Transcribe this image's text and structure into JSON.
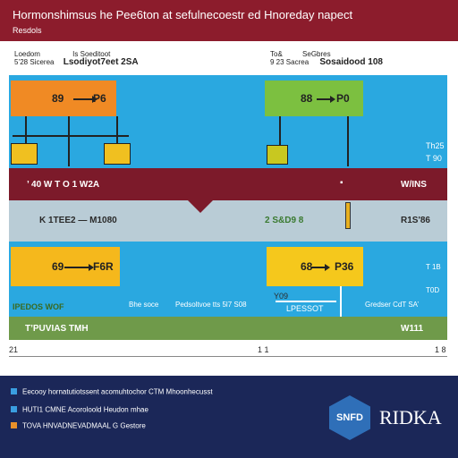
{
  "header": {
    "title": "Hormonshimsus he Pee6ton at sefulnecoestr ed Hnoreday napect",
    "subtitle": "Resdols"
  },
  "left_column": {
    "name": "Loedom",
    "col_a": "Is Soeditoot",
    "line2": "5’28 Sicerea",
    "line2b": "Lsodiyot7eet 2SA"
  },
  "right_column": {
    "name": "To&",
    "col_a": "SeGbres",
    "line2": "9 23 Sacrea",
    "line2b": "Sosaidood 108"
  },
  "row1": {
    "left_box_num": "89",
    "left_box_val": "P6",
    "right_box_num": "88",
    "right_box_val": "P0",
    "side_labels": [
      "Th25",
      "T 90"
    ]
  },
  "row2": {
    "left_label": "’ 40 W T O 1 W2A",
    "center_mark": "▪",
    "right_label": "W/INS"
  },
  "row3": {
    "left_label": "K 1TEE2 — M1080",
    "center_label": "2 S&D9 8",
    "right_label": "R1S'86"
  },
  "row4": {
    "left_box_num": "69",
    "left_box_val": "F6R",
    "right_box_num": "68",
    "right_box_val": "P36",
    "foot_left": "Bhe soce",
    "foot_mid": "Pedsoltvoe tts 5l7 S08",
    "small_label": "Y09",
    "foot_right": "Gredser CdT SA’",
    "right_side": [
      "T 1B",
      "T0D"
    ]
  },
  "row5": {
    "line1": "IPEDOS WOF",
    "line2": "T’PUVIAS TMH",
    "mid": "LPESSOT",
    "right": "W111"
  },
  "scale": {
    "left": "21",
    "mid": "1 1",
    "right": "1 8"
  },
  "footer": {
    "items": [
      {
        "text": "Eecooy hornatutiotssent acomuhtochor CTM Mhoonhecusst",
        "color": "#3a9ee0"
      },
      {
        "text": "HUTI1 CMNE Acoroloold Heudon mhae",
        "color": "#3a9ee0"
      },
      {
        "text": "TOVA HNVADNEVADMAAL G Gestore",
        "color": "#e8902a"
      }
    ],
    "logo_text": "SNFD",
    "brand": "RIDKA"
  }
}
